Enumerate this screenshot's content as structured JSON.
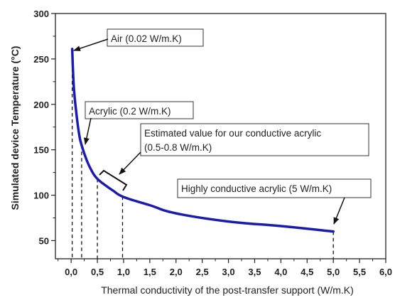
{
  "chart_data": {
    "type": "line",
    "xlabel": "Thermal conductivity of the post-transfer support (W/m.K)",
    "ylabel": "Simulated device Temperature (°C)",
    "xlim": [
      -0.3,
      6.0
    ],
    "ylim": [
      30,
      300
    ],
    "x_ticks": [
      0.0,
      0.5,
      1.0,
      1.5,
      2.0,
      2.5,
      3.0,
      3.5,
      4.0,
      4.5,
      5.0,
      5.5,
      6.0
    ],
    "x_tick_labels": [
      "0,0",
      "0,5",
      "1,0",
      "1,5",
      "2,0",
      "2,5",
      "3,0",
      "3,5",
      "4,0",
      "4,5",
      "5,0",
      "5,5",
      "6,0"
    ],
    "y_ticks": [
      50,
      100,
      150,
      200,
      250,
      300
    ],
    "y_tick_labels": [
      "50",
      "100",
      "150",
      "200",
      "250",
      "300"
    ],
    "series_color": "#1b1bb0",
    "series": [
      {
        "x": [
          0.02,
          0.05,
          0.1,
          0.15,
          0.2,
          0.3,
          0.4,
          0.5,
          0.65,
          0.8,
          1.0,
          1.5,
          2.0,
          3.0,
          4.0,
          5.0
        ],
        "y": [
          261,
          220,
          190,
          168,
          155,
          138,
          126,
          118,
          111,
          105,
          98,
          89,
          80,
          71,
          66,
          60
        ]
      }
    ],
    "annotations": [
      {
        "text": "Air (0.02 W/m.K)",
        "x": 0.02,
        "y": 261
      },
      {
        "text": "Acrylic (0.2 W/m.K)",
        "x": 0.2,
        "y": 155
      },
      {
        "text": [
          "Estimated value for our conductive acrylic",
          "(0.5-0.8 W/m.K)"
        ],
        "x": 0.65,
        "y": 111
      },
      {
        "text": "Highly conductive acrylic (5 W/m.K)",
        "x": 5.0,
        "y": 60
      }
    ],
    "drop_lines_x": [
      0.02,
      0.2,
      0.5,
      0.98,
      5.0
    ]
  }
}
